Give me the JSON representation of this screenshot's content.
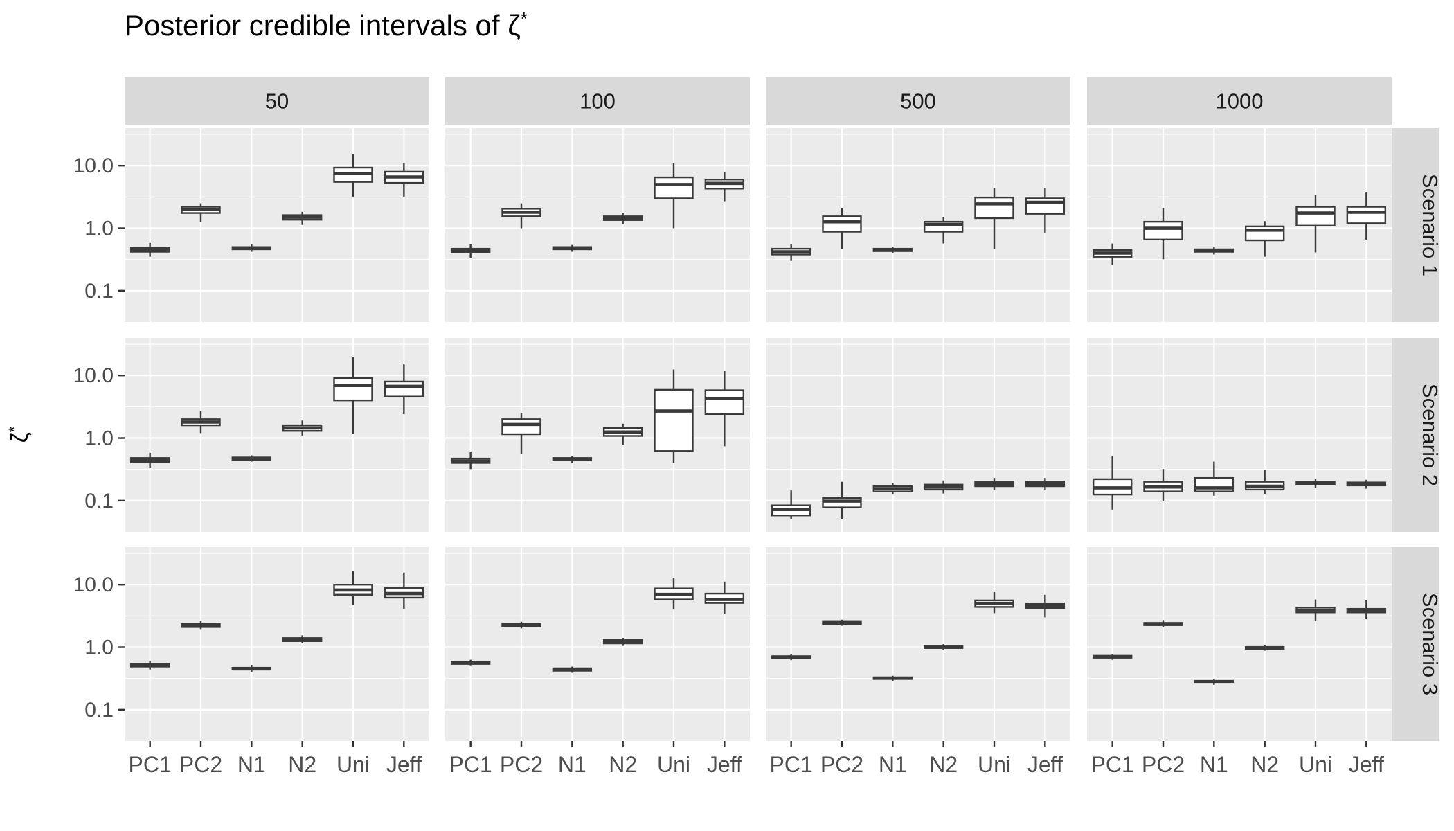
{
  "chart_data": {
    "type": "boxplot",
    "scale": "log10",
    "title_text": "Posterior credible intervals of ζ",
    "title_sup": "*",
    "ylabel_base": "ζ",
    "ylabel_sup": "*",
    "col_facets": [
      "50",
      "100",
      "500",
      "1000"
    ],
    "row_facets": [
      "Scenario 1",
      "Scenario 2",
      "Scenario 3"
    ],
    "categories": [
      "PC1",
      "PC2",
      "N1",
      "N2",
      "Uni",
      "Jeff"
    ],
    "y_ticks": [
      {
        "label": "10.0",
        "value": 10
      },
      {
        "label": "1.0",
        "value": 1
      },
      {
        "label": "0.1",
        "value": 0.1
      }
    ],
    "ylim_log10": [
      -1.5,
      1.6
    ],
    "legend": "none",
    "grid": "on",
    "stats_order": [
      "whisker_low",
      "q1",
      "median",
      "q3",
      "whisker_high"
    ],
    "panels": [
      {
        "scenario": "Scenario 1",
        "n": "50",
        "stats": [
          [
            0.35,
            0.42,
            0.45,
            0.49,
            0.58
          ],
          [
            1.27,
            1.75,
            2.0,
            2.2,
            2.5
          ],
          [
            0.42,
            0.46,
            0.48,
            0.5,
            0.55
          ],
          [
            1.13,
            1.37,
            1.5,
            1.62,
            1.83
          ],
          [
            3.1,
            5.5,
            7.5,
            9.3,
            15.5
          ],
          [
            3.2,
            5.3,
            6.6,
            8.0,
            11.0
          ]
        ]
      },
      {
        "scenario": "Scenario 1",
        "n": "100",
        "stats": [
          [
            0.33,
            0.41,
            0.44,
            0.47,
            0.55
          ],
          [
            1.0,
            1.55,
            1.8,
            2.05,
            2.5
          ],
          [
            0.42,
            0.46,
            0.48,
            0.5,
            0.54
          ],
          [
            1.15,
            1.35,
            1.45,
            1.55,
            1.75
          ],
          [
            1.0,
            3.0,
            5.0,
            6.5,
            11.0
          ],
          [
            2.7,
            4.3,
            5.2,
            6.0,
            8.0
          ]
        ]
      },
      {
        "scenario": "Scenario 1",
        "n": "500",
        "stats": [
          [
            0.3,
            0.38,
            0.42,
            0.47,
            0.55
          ],
          [
            0.46,
            0.88,
            1.27,
            1.55,
            2.1
          ],
          [
            0.4,
            0.43,
            0.45,
            0.47,
            0.5
          ],
          [
            0.57,
            0.88,
            1.15,
            1.27,
            1.5
          ],
          [
            0.46,
            1.45,
            2.45,
            3.1,
            4.4
          ],
          [
            0.85,
            1.7,
            2.6,
            3.0,
            4.4
          ]
        ]
      },
      {
        "scenario": "Scenario 1",
        "n": "1000",
        "stats": [
          [
            0.26,
            0.35,
            0.4,
            0.45,
            0.57
          ],
          [
            0.32,
            0.66,
            1.0,
            1.27,
            2.1
          ],
          [
            0.38,
            0.42,
            0.44,
            0.46,
            0.5
          ],
          [
            0.35,
            0.64,
            0.93,
            1.07,
            1.3
          ],
          [
            0.41,
            1.1,
            1.75,
            2.2,
            3.4
          ],
          [
            0.64,
            1.2,
            1.8,
            2.2,
            3.8
          ]
        ]
      },
      {
        "scenario": "Scenario 2",
        "n": "50",
        "stats": [
          [
            0.33,
            0.41,
            0.44,
            0.48,
            0.58
          ],
          [
            1.2,
            1.6,
            1.8,
            2.0,
            2.7
          ],
          [
            0.42,
            0.45,
            0.47,
            0.49,
            0.53
          ],
          [
            1.1,
            1.3,
            1.45,
            1.6,
            1.9
          ],
          [
            1.17,
            4.0,
            6.9,
            9.1,
            20.0
          ],
          [
            2.4,
            4.6,
            6.7,
            8.0,
            15.0
          ]
        ]
      },
      {
        "scenario": "Scenario 2",
        "n": "100",
        "stats": [
          [
            0.32,
            0.4,
            0.43,
            0.47,
            0.61
          ],
          [
            0.55,
            1.15,
            1.65,
            2.0,
            2.5
          ],
          [
            0.4,
            0.44,
            0.46,
            0.48,
            0.52
          ],
          [
            0.78,
            1.08,
            1.25,
            1.45,
            1.7
          ],
          [
            0.4,
            0.62,
            2.7,
            5.9,
            12.5
          ],
          [
            0.74,
            2.4,
            4.3,
            5.8,
            11.7
          ]
        ]
      },
      {
        "scenario": "Scenario 2",
        "n": "500",
        "stats": [
          [
            0.05,
            0.058,
            0.072,
            0.084,
            0.145
          ],
          [
            0.05,
            0.078,
            0.098,
            0.11,
            0.2
          ],
          [
            0.125,
            0.14,
            0.155,
            0.17,
            0.19
          ],
          [
            0.13,
            0.15,
            0.165,
            0.18,
            0.21
          ],
          [
            0.15,
            0.17,
            0.185,
            0.2,
            0.23
          ],
          [
            0.15,
            0.17,
            0.185,
            0.2,
            0.23
          ]
        ]
      },
      {
        "scenario": "Scenario 2",
        "n": "1000",
        "stats": [
          [
            0.072,
            0.125,
            0.16,
            0.22,
            0.52
          ],
          [
            0.097,
            0.14,
            0.165,
            0.2,
            0.32
          ],
          [
            0.12,
            0.14,
            0.16,
            0.23,
            0.42
          ],
          [
            0.125,
            0.15,
            0.17,
            0.2,
            0.31
          ],
          [
            0.16,
            0.18,
            0.19,
            0.2,
            0.22
          ],
          [
            0.155,
            0.175,
            0.185,
            0.195,
            0.215
          ]
        ]
      },
      {
        "scenario": "Scenario 3",
        "n": "50",
        "stats": [
          [
            0.44,
            0.49,
            0.51,
            0.54,
            0.6
          ],
          [
            1.9,
            2.1,
            2.2,
            2.35,
            2.6
          ],
          [
            0.4,
            0.44,
            0.45,
            0.47,
            0.51
          ],
          [
            1.15,
            1.25,
            1.3,
            1.4,
            1.55
          ],
          [
            4.8,
            6.9,
            8.2,
            10.0,
            16.4
          ],
          [
            4.1,
            6.2,
            7.2,
            8.9,
            15.6
          ]
        ]
      },
      {
        "scenario": "Scenario 3",
        "n": "100",
        "stats": [
          [
            0.5,
            0.54,
            0.56,
            0.59,
            0.63
          ],
          [
            2.0,
            2.15,
            2.25,
            2.35,
            2.55
          ],
          [
            0.39,
            0.42,
            0.44,
            0.46,
            0.49
          ],
          [
            1.05,
            1.15,
            1.2,
            1.3,
            1.4
          ],
          [
            4.0,
            5.8,
            7.0,
            8.7,
            12.9
          ],
          [
            3.4,
            5.1,
            5.8,
            7.2,
            11.2
          ]
        ]
      },
      {
        "scenario": "Scenario 3",
        "n": "500",
        "stats": [
          [
            0.62,
            0.67,
            0.69,
            0.72,
            0.77
          ],
          [
            2.2,
            2.35,
            2.45,
            2.55,
            2.75
          ],
          [
            0.29,
            0.31,
            0.32,
            0.33,
            0.35
          ],
          [
            0.9,
            0.97,
            1.0,
            1.05,
            1.12
          ],
          [
            3.5,
            4.4,
            5.0,
            5.6,
            7.6
          ],
          [
            3.0,
            4.2,
            4.5,
            4.9,
            6.9
          ]
        ]
      },
      {
        "scenario": "Scenario 3",
        "n": "1000",
        "stats": [
          [
            0.63,
            0.68,
            0.7,
            0.73,
            0.78
          ],
          [
            2.1,
            2.25,
            2.35,
            2.45,
            2.65
          ],
          [
            0.25,
            0.27,
            0.28,
            0.29,
            0.31
          ],
          [
            0.88,
            0.94,
            0.97,
            1.01,
            1.08
          ],
          [
            2.6,
            3.6,
            3.9,
            4.3,
            5.8
          ],
          [
            2.8,
            3.6,
            3.8,
            4.1,
            5.7
          ]
        ]
      }
    ],
    "colors": {
      "panel_bg": "#EBEBEB",
      "strip_bg": "#D9D9D9",
      "gridline": "#FFFFFF",
      "box_stroke": "#3A3A3A",
      "box_fill": "#FFFFFF",
      "tick_mark": "#333333",
      "axis_text": "#4D4D4D",
      "strip_text": "#1A1A1A",
      "title_text": "#000000"
    }
  }
}
